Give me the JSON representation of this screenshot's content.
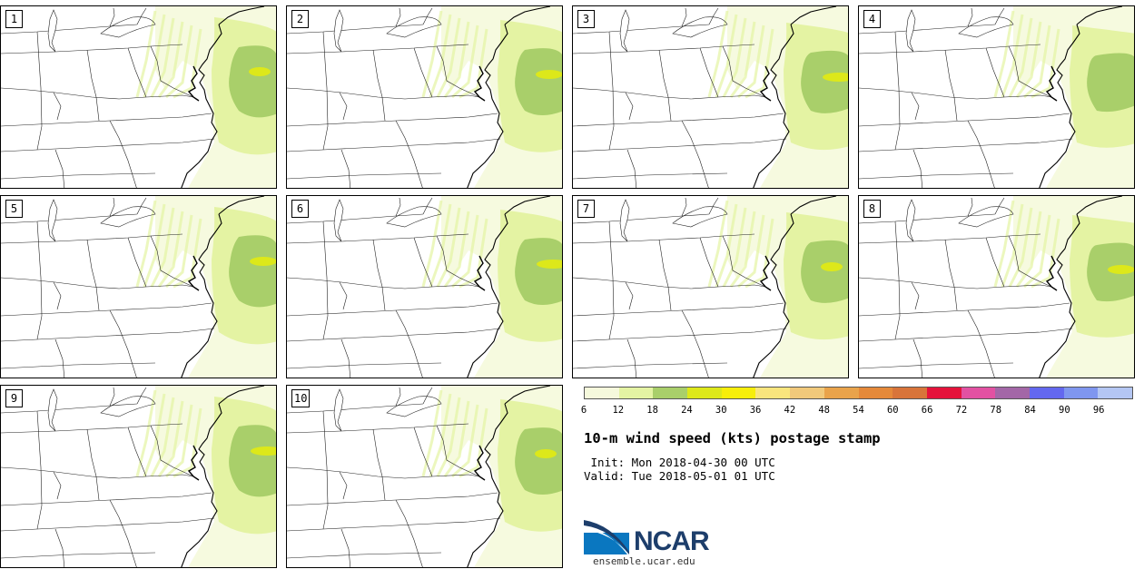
{
  "panels": [
    {
      "label": "1"
    },
    {
      "label": "2"
    },
    {
      "label": "3"
    },
    {
      "label": "4"
    },
    {
      "label": "5"
    },
    {
      "label": "6"
    },
    {
      "label": "7"
    },
    {
      "label": "8"
    },
    {
      "label": "9"
    },
    {
      "label": "10"
    }
  ],
  "colorbar": {
    "colors": [
      "#f5f9dc",
      "#e4f3a3",
      "#a9cf6a",
      "#dde81a",
      "#f7ee0a",
      "#f9e57d",
      "#f1c97b",
      "#e9a34b",
      "#e5893a",
      "#d8743a",
      "#e5123b",
      "#e251a2",
      "#a367a7",
      "#6368ef",
      "#7f96ef",
      "#b4c6f3"
    ],
    "ticks": [
      "6",
      "12",
      "18",
      "24",
      "30",
      "36",
      "42",
      "48",
      "54",
      "60",
      "66",
      "72",
      "78",
      "84",
      "90",
      "96"
    ]
  },
  "title": "10-m wind speed (kts) postage stamp",
  "init": " Init: Mon 2018-04-30 00 UTC",
  "valid": "Valid: Tue 2018-05-01 01 UTC",
  "logo": {
    "text": "NCAR",
    "url": "ensemble.ucar.edu",
    "color": "#1d3e6b",
    "accent": "#0a77c0"
  }
}
